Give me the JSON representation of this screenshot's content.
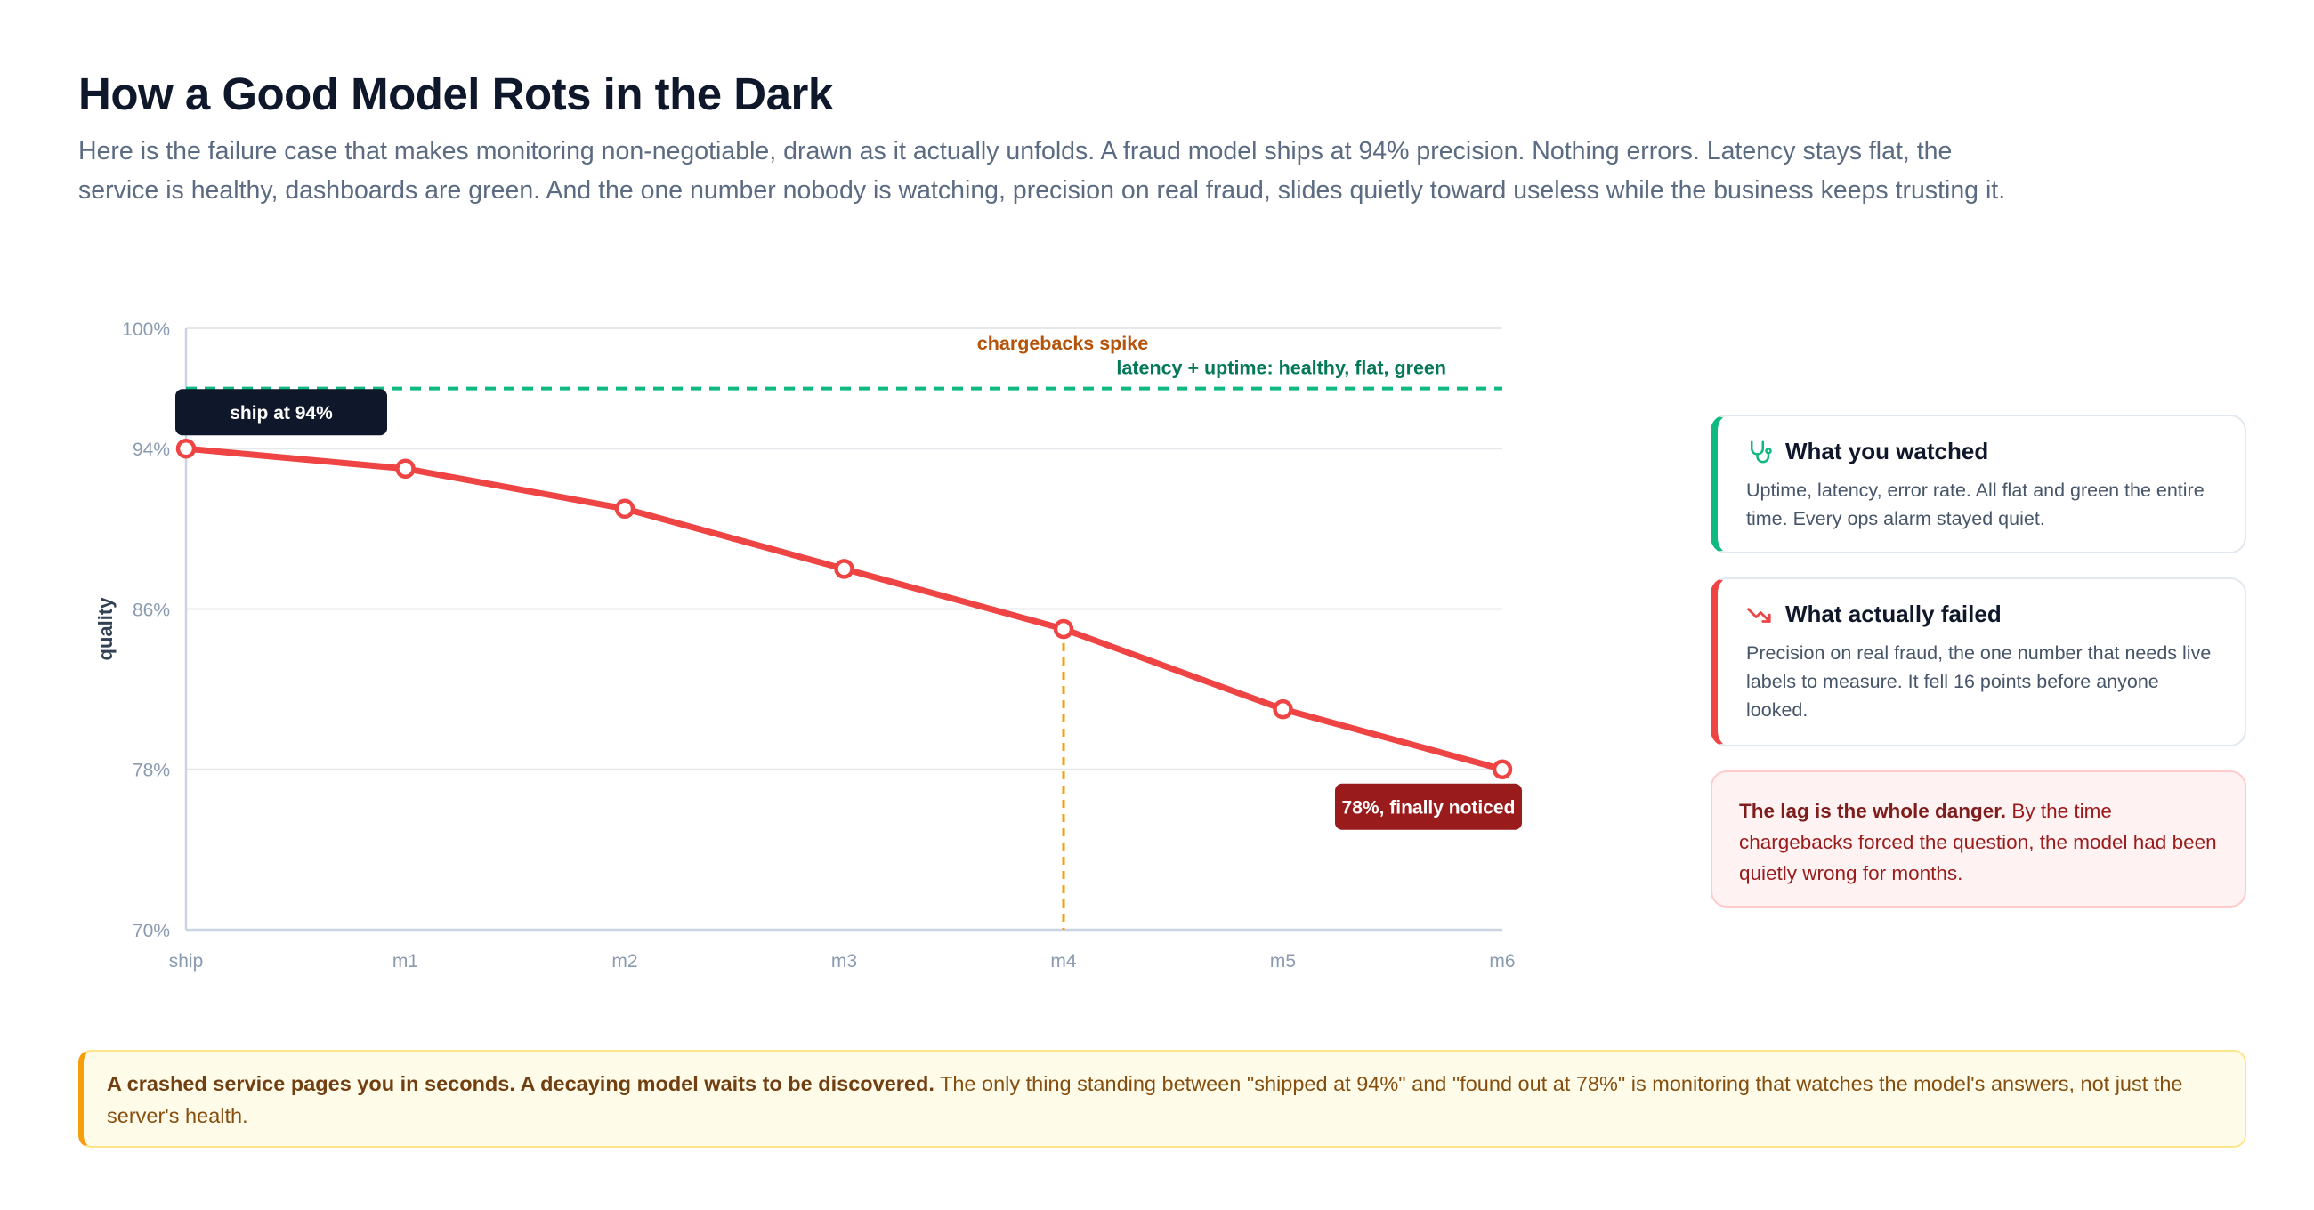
{
  "header": {
    "title": "How a Good Model Rots in the Dark",
    "subtitle": "Here is the failure case that makes monitoring non-negotiable, drawn as it actually unfolds. A fraud model ships at 94% precision. Nothing errors. Latency stays flat, the service is healthy, dashboards are green. And the one number nobody is watching, precision on real fraud, slides quietly toward useless while the business keeps trusting it."
  },
  "chart_data": {
    "type": "line",
    "categories": [
      "ship",
      "m1",
      "m2",
      "m3",
      "m4",
      "m5",
      "m6"
    ],
    "ylabel": "quality",
    "ylim": [
      70,
      100
    ],
    "yticks": [
      "70%",
      "78%",
      "86%",
      "94%",
      "100%"
    ],
    "ytick_values": [
      70,
      78,
      86,
      94,
      100
    ],
    "grid": true,
    "series": [
      {
        "values": [
          94,
          93,
          91,
          88,
          85,
          81,
          78
        ],
        "color": "#ef4444"
      }
    ],
    "reference_line": {
      "value": 97,
      "label": "latency + uptime: healthy, flat, green",
      "color": "#10b981"
    },
    "event_marker": {
      "category": "m4",
      "label": "chargebacks spike",
      "color": "#f59e0b",
      "label_color": "#b45309"
    },
    "annotations": {
      "start": "ship at 94%",
      "end": "78%, finally noticed"
    }
  },
  "cards": {
    "watched": {
      "icon": "stethoscope-icon",
      "title": "What you watched",
      "body": "Uptime, latency, error rate. All flat and green the entire time. Every ops alarm stayed quiet.",
      "accent": "#10b981"
    },
    "failed": {
      "icon": "trending-down-icon",
      "title": "What actually failed",
      "body": "Precision on real fraud, the one number that needs live labels to measure. It fell 16 points before anyone looked.",
      "accent": "#ef4444"
    },
    "danger": {
      "lead": "The lag is the whole danger.",
      "body": " By the time chargebacks forced the question, the model had been quietly wrong for months."
    }
  },
  "callout": {
    "lead": "A crashed service pages you in seconds. A decaying model waits to be discovered.",
    "body": " The only thing standing between \"shipped at 94%\" and \"found out at 78%\" is monitoring that watches the model's answers, not just the server's health."
  }
}
